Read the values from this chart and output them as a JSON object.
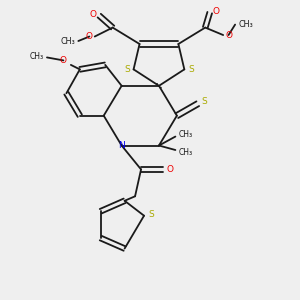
{
  "background_color": "#efefef",
  "bond_color": "#1a1a1a",
  "sulfur_color": "#aaaa00",
  "nitrogen_color": "#0000ee",
  "oxygen_color": "#ee0000",
  "fig_width": 3.0,
  "fig_height": 3.0,
  "dpi": 100,
  "xlim": [
    0,
    10
  ],
  "ylim": [
    0,
    10
  ]
}
